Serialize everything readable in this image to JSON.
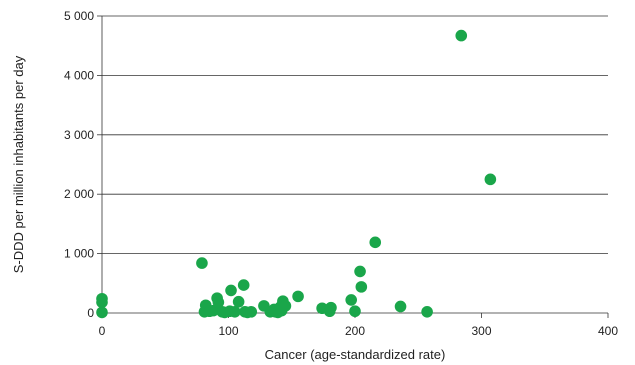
{
  "chart_data": {
    "type": "scatter",
    "xlabel": "Cancer (age-standardized rate)",
    "ylabel": "S-DDD per million inhabitants per day",
    "xlim": [
      0,
      400
    ],
    "ylim": [
      0,
      5000
    ],
    "x_ticks": [
      0,
      100,
      200,
      300,
      400
    ],
    "y_ticks": [
      0,
      1000,
      2000,
      3000,
      4000,
      5000
    ],
    "x_tick_labels": [
      "0",
      "100",
      "200",
      "300",
      "400"
    ],
    "y_tick_labels": [
      "0",
      "1 000",
      "2 000",
      "3 000",
      "4 000",
      "5 000"
    ],
    "grid": "horizontal",
    "marker_color": "#1aa64a",
    "series": [
      {
        "points": [
          [
            0,
            240
          ],
          [
            0,
            180
          ],
          [
            0,
            10
          ],
          [
            79,
            840
          ],
          [
            81,
            20
          ],
          [
            82,
            130
          ],
          [
            85,
            30
          ],
          [
            88,
            40
          ],
          [
            91,
            250
          ],
          [
            92,
            180
          ],
          [
            95,
            20
          ],
          [
            97,
            10
          ],
          [
            101,
            30
          ],
          [
            102,
            380
          ],
          [
            105,
            20
          ],
          [
            108,
            190
          ],
          [
            112,
            470
          ],
          [
            113,
            20
          ],
          [
            115,
            10
          ],
          [
            118,
            20
          ],
          [
            128,
            120
          ],
          [
            133,
            20
          ],
          [
            136,
            60
          ],
          [
            137,
            20
          ],
          [
            139,
            10
          ],
          [
            141,
            100
          ],
          [
            142,
            40
          ],
          [
            143,
            200
          ],
          [
            145,
            120
          ],
          [
            155,
            280
          ],
          [
            174,
            80
          ],
          [
            180,
            30
          ],
          [
            181,
            90
          ],
          [
            197,
            220
          ],
          [
            200,
            30
          ],
          [
            204,
            700
          ],
          [
            205,
            440
          ],
          [
            216,
            1190
          ],
          [
            236,
            110
          ],
          [
            257,
            20
          ],
          [
            284,
            4670
          ],
          [
            307,
            2250
          ]
        ]
      }
    ]
  }
}
